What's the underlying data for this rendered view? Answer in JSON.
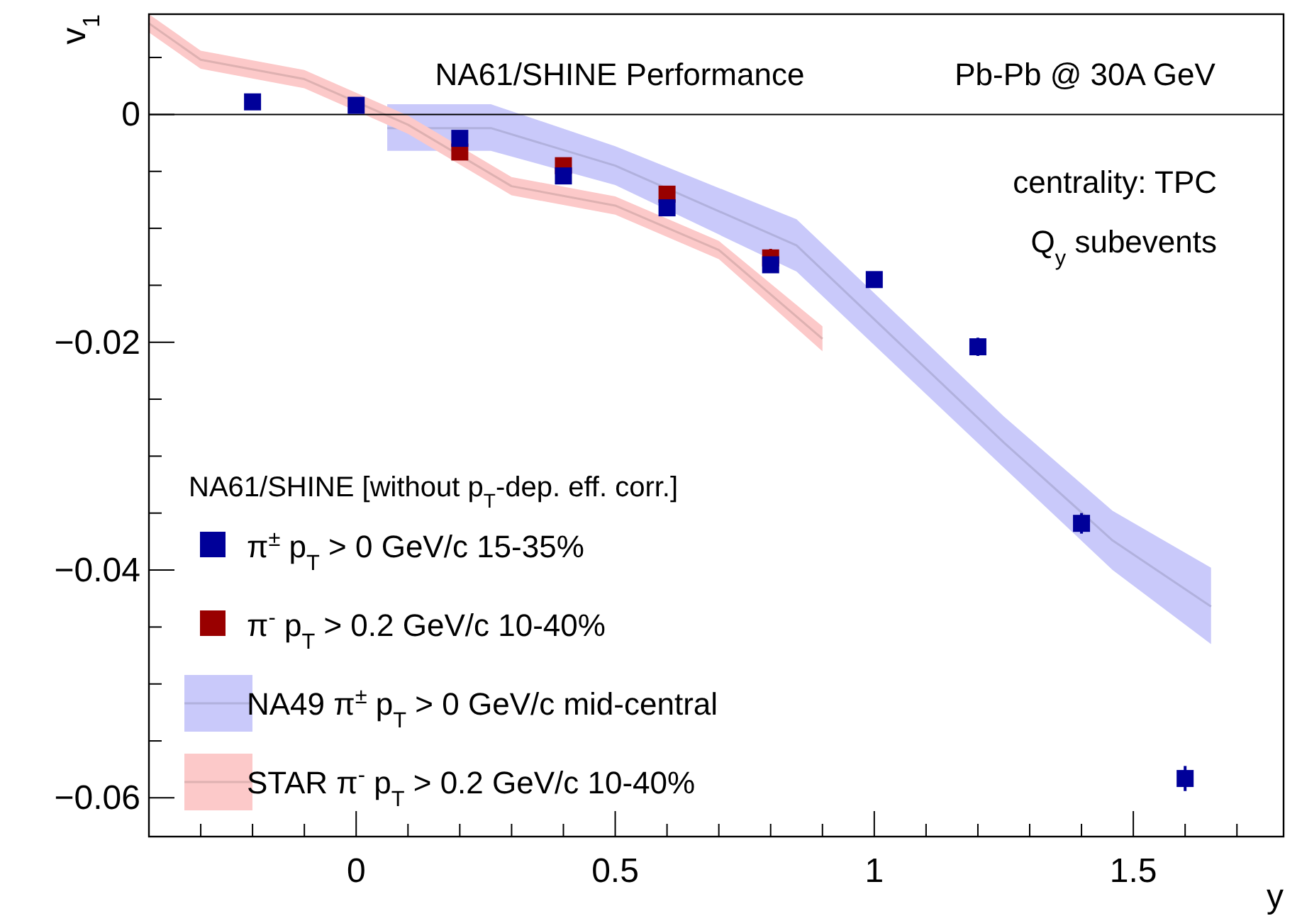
{
  "chart_data": {
    "type": "scatter",
    "ylabel": "v$_{1}$",
    "xlabel": "y",
    "legend_title": "NA61/SHINE [without p$_{T}$-dep. eff. corr.]",
    "annotations": [
      "NA61/SHINE Performance",
      "Pb-Pb @ 30A GeV",
      "centrality: TPC",
      "Q$_{y}$ subevents"
    ],
    "xlim": [
      -0.4,
      1.79
    ],
    "ylim": [
      -0.0634,
      0.0088
    ],
    "xticks": [
      {
        "value": -0.3,
        "label": null
      },
      {
        "value": -0.2,
        "label": null
      },
      {
        "value": -0.1,
        "label": null
      },
      0,
      {
        "value": 0.1,
        "label": null
      },
      {
        "value": 0.2,
        "label": null
      },
      {
        "value": 0.3,
        "label": null
      },
      {
        "value": 0.4,
        "label": null
      },
      0.5,
      {
        "value": 0.6,
        "label": null
      },
      {
        "value": 0.7,
        "label": null
      },
      {
        "value": 0.8,
        "label": null
      },
      {
        "value": 0.9,
        "label": null
      },
      1,
      {
        "value": 1.1,
        "label": null
      },
      {
        "value": 1.2,
        "label": null
      },
      {
        "value": 1.3,
        "label": null
      },
      {
        "value": 1.4,
        "label": null
      },
      1.5,
      {
        "value": 1.6,
        "label": null
      },
      {
        "value": 1.7,
        "label": null
      }
    ],
    "yticks": [
      {
        "value": -0.06,
        "label": "−0.06"
      },
      {
        "value": -0.055,
        "label": null
      },
      {
        "value": -0.05,
        "label": null
      },
      {
        "value": -0.045,
        "label": null
      },
      {
        "value": -0.04,
        "label": "−0.04"
      },
      {
        "value": -0.035,
        "label": null
      },
      {
        "value": -0.03,
        "label": null
      },
      {
        "value": -0.025,
        "label": null
      },
      {
        "value": -0.02,
        "label": "−0.02"
      },
      {
        "value": -0.015,
        "label": null
      },
      {
        "value": -0.01,
        "label": null
      },
      {
        "value": -0.005,
        "label": null
      },
      0,
      {
        "value": 0.005,
        "label": null
      }
    ],
    "ref_lines": [
      {
        "axis": "y",
        "value": 0,
        "color": "#000000"
      }
    ],
    "legend": "bottom left",
    "grid": false,
    "series": [
      {
        "name": "NA49 π$^{±}$ p$_{T}$ > 0 GeV/c mid-central",
        "type": "line",
        "marker": "none",
        "color": "#b1b1dd",
        "x": [
          0.06,
          0.26,
          0.5,
          0.85,
          1.25,
          1.46,
          1.65
        ],
        "values": [
          -0.0012,
          -0.0012,
          -0.0045,
          -0.0115,
          -0.0288,
          -0.0374,
          -0.0432
        ],
        "upper": [
          0.0009,
          0.0009,
          -0.0028,
          -0.0092,
          -0.0265,
          -0.0348,
          -0.0398
        ],
        "lower": [
          -0.0032,
          -0.0032,
          -0.0062,
          -0.0138,
          -0.031,
          -0.04,
          -0.0465
        ]
      },
      {
        "name": "STAR π$^{-}$ p$_{T}$ > 0.2 GeV/c 10-40%",
        "type": "line",
        "marker": "none",
        "color": "#deb1b1",
        "x": [
          -0.4,
          -0.3,
          -0.1,
          0.1,
          0.3,
          0.5,
          0.7,
          0.9
        ],
        "values": [
          0.008,
          0.0048,
          0.0031,
          -0.0009,
          -0.0063,
          -0.008,
          -0.0119,
          -0.0197
        ],
        "upper": [
          0.0088,
          0.0056,
          0.0039,
          -0.0001,
          -0.0055,
          -0.0072,
          -0.0111,
          -0.0186
        ],
        "lower": [
          0.0072,
          0.004,
          0.0023,
          -0.0017,
          -0.0071,
          -0.0088,
          -0.0127,
          -0.0208
        ]
      },
      {
        "name": "π$^{-}$ p$_{T}$ > 0.2 GeV/c 10-40%",
        "marker": "square",
        "color": "#990000",
        "x": [
          0.2,
          0.4,
          0.6,
          0.8
        ],
        "values": [
          -0.0033,
          -0.0045,
          -0.007,
          -0.0126
        ],
        "errors": [
          null,
          0.0006,
          0.0006,
          0.0008
        ]
      },
      {
        "name": "π$^{±}$ p$_{T}$ > 0 GeV/c 15-35%",
        "marker": "square",
        "color": "#000099",
        "x": [
          -0.2,
          0,
          0.2,
          0.4,
          0.6,
          0.8,
          1.0,
          1.2,
          1.4,
          1.6
        ],
        "values": [
          0.0011,
          0.0008,
          -0.0021,
          -0.0054,
          -0.0082,
          -0.0132,
          -0.0145,
          -0.0204,
          -0.0359,
          -0.0583
        ],
        "errors": [
          null,
          null,
          null,
          null,
          null,
          0.0007,
          0.0006,
          0.0008,
          0.0009,
          0.0011
        ]
      }
    ]
  }
}
